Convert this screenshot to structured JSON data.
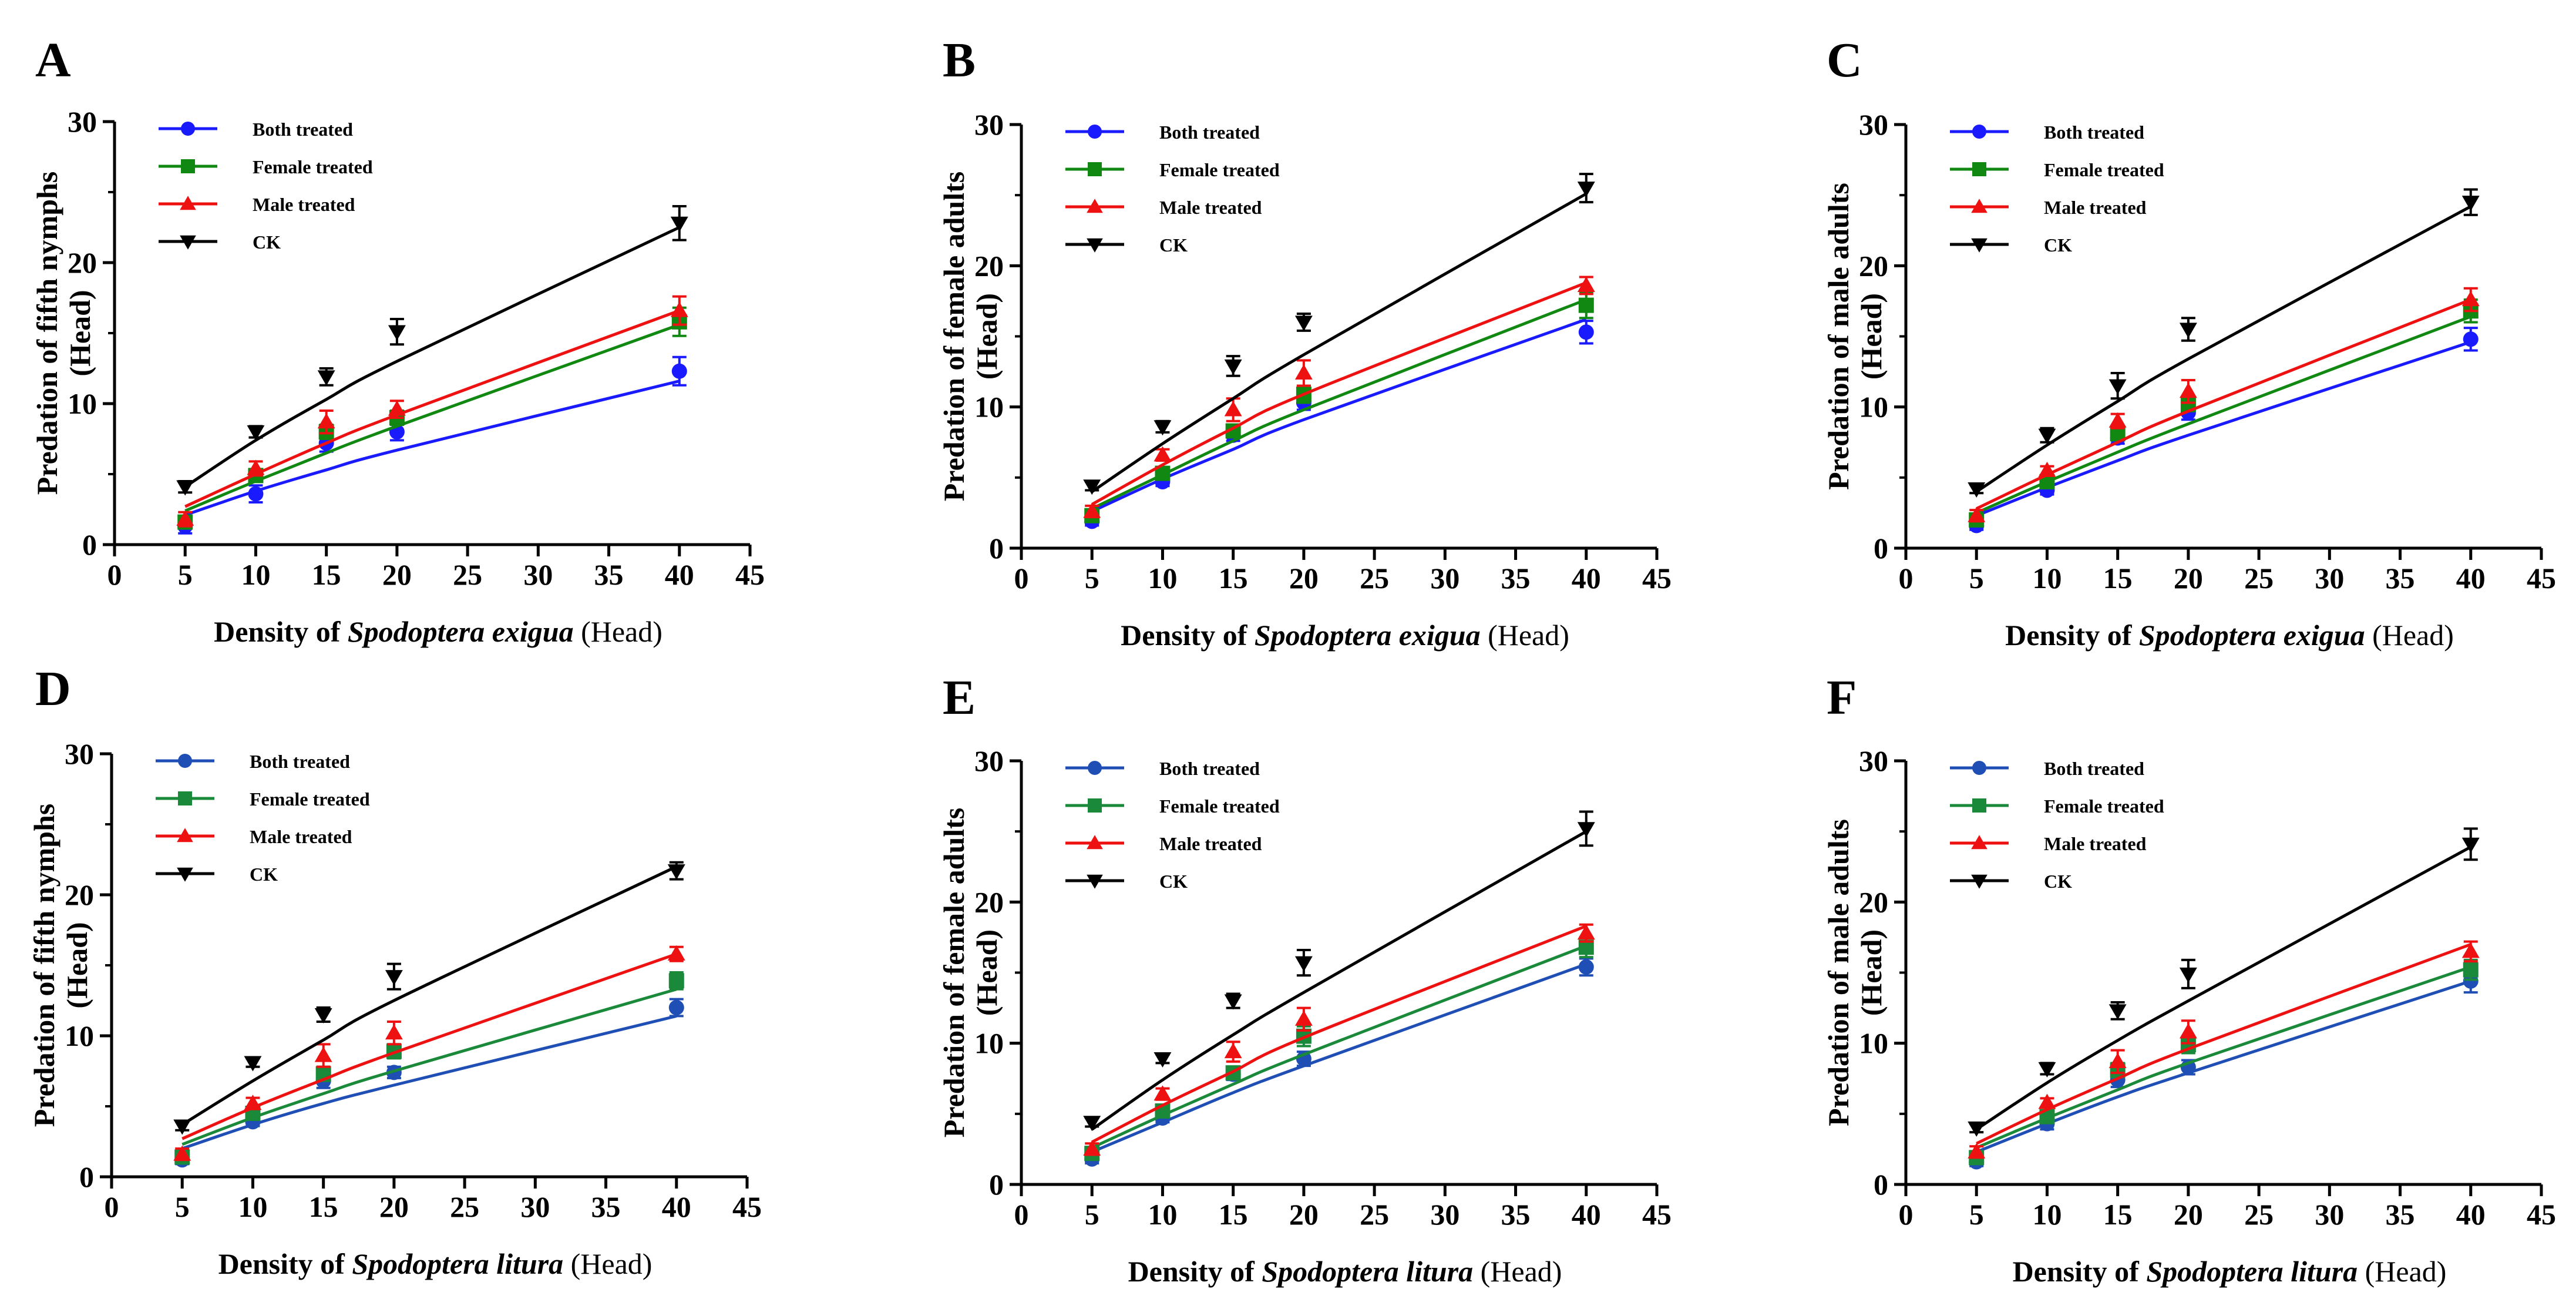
{
  "figure": {
    "colors": {
      "axis": "#000000",
      "series": [
        "#1a1aff",
        "#118811",
        "#ee1111",
        "#000000"
      ],
      "series_lower_row": [
        "#1f4fb5",
        "#1a8a3a",
        "#ee1111",
        "#000000"
      ]
    },
    "marker_shapes": [
      "circle",
      "square",
      "triangle-up",
      "triangle-down"
    ]
  },
  "chart_data": [
    {
      "panel_label": "A",
      "type": "scatter",
      "xlabel_prefix": "Density of ",
      "xlabel_species": "Spodoptera exigua",
      "xlabel_suffix": " (Head)",
      "ylabel_line1": "Predation of fifth nymphs",
      "ylabel_line2": "(Head)",
      "xlim": [
        0,
        45
      ],
      "ylim": [
        0,
        30
      ],
      "xticks": [
        0,
        5,
        10,
        15,
        20,
        25,
        30,
        35,
        40,
        45
      ],
      "yticks": [
        0,
        10,
        20,
        30
      ],
      "legend_position": "top-left",
      "x": [
        5,
        10,
        15,
        20,
        40
      ],
      "series": [
        {
          "name": "Both treated",
          "values": [
            1.3,
            3.6,
            7.2,
            8.0,
            12.3
          ],
          "errors": [
            0.5,
            0.6,
            0.6,
            0.6,
            1.0
          ],
          "fit": [
            2.1,
            3.8,
            5.3,
            6.7,
            11.6
          ]
        },
        {
          "name": "Female treated",
          "values": [
            1.6,
            4.9,
            8.0,
            9.0,
            15.8
          ],
          "errors": [
            0.4,
            0.4,
            0.5,
            0.5,
            1.0
          ],
          "fit": [
            2.4,
            4.5,
            6.5,
            8.4,
            15.6
          ]
        },
        {
          "name": "Male treated",
          "values": [
            1.8,
            5.4,
            8.7,
            9.6,
            16.6
          ],
          "errors": [
            0.5,
            0.5,
            0.8,
            0.6,
            1.0
          ],
          "fit": [
            2.7,
            5.0,
            7.2,
            9.2,
            16.6
          ]
        },
        {
          "name": "CK",
          "values": [
            4.1,
            8.0,
            11.9,
            15.1,
            22.8
          ],
          "errors": [
            0.4,
            0.4,
            0.6,
            0.9,
            1.2
          ],
          "fit": [
            4.1,
            7.4,
            10.3,
            13.0,
            22.5
          ]
        }
      ]
    },
    {
      "panel_label": "B",
      "type": "scatter",
      "xlabel_prefix": "Density of ",
      "xlabel_species": "Spodoptera exigua",
      "xlabel_suffix": " (Head)",
      "ylabel_line1": "Predation of female adults",
      "ylabel_line2": "(Head)",
      "xlim": [
        0,
        45
      ],
      "ylim": [
        0,
        30
      ],
      "xticks": [
        0,
        5,
        10,
        15,
        20,
        25,
        30,
        35,
        40,
        45
      ],
      "yticks": [
        0,
        10,
        20,
        30
      ],
      "legend_position": "top-left",
      "x": [
        5,
        10,
        15,
        20,
        40
      ],
      "series": [
        {
          "name": "Both treated",
          "values": [
            1.9,
            4.7,
            8.0,
            10.3,
            15.3
          ],
          "errors": [
            0.3,
            0.3,
            0.4,
            0.5,
            0.8
          ],
          "fit": [
            2.6,
            4.9,
            7.0,
            9.1,
            16.2
          ]
        },
        {
          "name": "Female treated",
          "values": [
            2.3,
            5.3,
            8.3,
            10.9,
            17.2
          ],
          "errors": [
            0.4,
            0.3,
            0.4,
            0.6,
            0.9
          ],
          "fit": [
            2.8,
            5.2,
            7.6,
            9.8,
            17.6
          ]
        },
        {
          "name": "Male treated",
          "values": [
            2.6,
            6.6,
            9.8,
            12.4,
            18.6
          ],
          "errors": [
            0.4,
            0.4,
            0.8,
            0.9,
            0.6
          ],
          "fit": [
            3.1,
            5.9,
            8.5,
            10.9,
            18.8
          ]
        },
        {
          "name": "CK",
          "values": [
            4.4,
            8.6,
            12.9,
            16.0,
            25.5
          ],
          "errors": [
            0.3,
            0.4,
            0.7,
            0.6,
            1.0
          ],
          "fit": [
            4.0,
            7.4,
            10.6,
            13.7,
            25.1
          ]
        }
      ]
    },
    {
      "panel_label": "C",
      "type": "scatter",
      "xlabel_prefix": "Density of ",
      "xlabel_species": "Spodoptera exigua",
      "xlabel_suffix": " (Head)",
      "ylabel_line1": "Predation of male adults",
      "ylabel_line2": "(Head)",
      "xlim": [
        0,
        45
      ],
      "ylim": [
        0,
        30
      ],
      "xticks": [
        0,
        5,
        10,
        15,
        20,
        25,
        30,
        35,
        40,
        45
      ],
      "yticks": [
        0,
        10,
        20,
        30
      ],
      "legend_position": "top-left",
      "x": [
        5,
        10,
        15,
        20,
        40
      ],
      "series": [
        {
          "name": "Both treated",
          "values": [
            1.6,
            4.1,
            7.8,
            9.6,
            14.8
          ],
          "errors": [
            0.3,
            0.3,
            0.4,
            0.5,
            0.8
          ],
          "fit": [
            2.3,
            4.3,
            6.2,
            8.0,
            14.6
          ]
        },
        {
          "name": "Female treated",
          "values": [
            2.0,
            4.7,
            8.1,
            10.2,
            16.8
          ],
          "errors": [
            0.3,
            0.3,
            0.4,
            0.5,
            0.8
          ],
          "fit": [
            2.5,
            4.7,
            6.8,
            8.8,
            16.4
          ]
        },
        {
          "name": "Male treated",
          "values": [
            2.3,
            5.5,
            9.0,
            11.1,
            17.6
          ],
          "errors": [
            0.4,
            0.3,
            0.5,
            0.8,
            0.8
          ],
          "fit": [
            2.8,
            5.2,
            7.5,
            9.7,
            17.6
          ]
        },
        {
          "name": "CK",
          "values": [
            4.2,
            8.0,
            11.5,
            15.5,
            24.5
          ],
          "errors": [
            0.3,
            0.5,
            0.9,
            0.8,
            0.9
          ],
          "fit": [
            4.0,
            7.3,
            10.4,
            13.4,
            24.2
          ]
        }
      ]
    },
    {
      "panel_label": "D",
      "type": "scatter",
      "xlabel_prefix": "Density of ",
      "xlabel_species": "Spodoptera litura",
      "xlabel_suffix": " (Head)",
      "ylabel_line1": "Predation of fifth nymphs",
      "ylabel_line2": "(Head)",
      "xlim": [
        0,
        45
      ],
      "ylim": [
        0,
        30
      ],
      "xticks": [
        0,
        5,
        10,
        15,
        20,
        25,
        30,
        35,
        40,
        45
      ],
      "yticks": [
        0,
        10,
        20,
        30
      ],
      "legend_position": "top-left",
      "x": [
        5,
        10,
        15,
        20,
        40
      ],
      "series": [
        {
          "name": "Both treated",
          "values": [
            1.2,
            3.9,
            6.8,
            7.4,
            12.0
          ],
          "errors": [
            0.3,
            0.3,
            0.5,
            0.4,
            0.6
          ],
          "fit": [
            2.0,
            3.7,
            5.2,
            6.5,
            11.4
          ]
        },
        {
          "name": "Female treated",
          "values": [
            1.4,
            4.5,
            7.3,
            8.9,
            13.9
          ],
          "errors": [
            0.3,
            0.4,
            0.5,
            0.5,
            0.6
          ],
          "fit": [
            2.3,
            4.2,
            5.9,
            7.5,
            13.3
          ]
        },
        {
          "name": "Male treated",
          "values": [
            1.6,
            5.2,
            8.6,
            10.2,
            15.8
          ],
          "errors": [
            0.4,
            0.4,
            0.8,
            0.8,
            0.5
          ],
          "fit": [
            2.7,
            4.9,
            6.9,
            8.8,
            15.8
          ]
        },
        {
          "name": "CK",
          "values": [
            3.6,
            8.1,
            11.5,
            14.2,
            21.7
          ],
          "errors": [
            0.3,
            0.3,
            0.5,
            0.9,
            0.6
          ],
          "fit": [
            3.7,
            6.8,
            9.7,
            12.5,
            22.0
          ]
        }
      ]
    },
    {
      "panel_label": "E",
      "type": "scatter",
      "xlabel_prefix": "Density of ",
      "xlabel_species": "Spodoptera litura",
      "xlabel_suffix": " (Head)",
      "ylabel_line1": "Predation of female adults",
      "ylabel_line2": "(Head)",
      "xlim": [
        0,
        45
      ],
      "ylim": [
        0,
        30
      ],
      "xticks": [
        0,
        5,
        10,
        15,
        20,
        25,
        30,
        35,
        40,
        45
      ],
      "yticks": [
        0,
        10,
        20,
        30
      ],
      "legend_position": "top-left",
      "x": [
        5,
        10,
        15,
        20,
        40
      ],
      "series": [
        {
          "name": "Both treated",
          "values": [
            1.8,
            4.7,
            7.8,
            8.9,
            15.4
          ],
          "errors": [
            0.3,
            0.3,
            0.4,
            0.5,
            0.6
          ],
          "fit": [
            2.3,
            4.4,
            6.5,
            8.4,
            15.6
          ]
        },
        {
          "name": "Female treated",
          "values": [
            2.2,
            5.2,
            7.9,
            10.5,
            16.8
          ],
          "errors": [
            0.4,
            0.3,
            0.4,
            0.7,
            0.7
          ],
          "fit": [
            2.6,
            4.9,
            7.1,
            9.2,
            16.9
          ]
        },
        {
          "name": "Male treated",
          "values": [
            2.5,
            6.4,
            9.4,
            11.7,
            17.8
          ],
          "errors": [
            0.4,
            0.4,
            0.7,
            0.8,
            0.6
          ],
          "fit": [
            3.0,
            5.6,
            8.0,
            10.4,
            18.3
          ]
        },
        {
          "name": "CK",
          "values": [
            4.4,
            8.9,
            13.0,
            15.7,
            25.2
          ],
          "errors": [
            0.3,
            0.3,
            0.5,
            0.9,
            1.2
          ],
          "fit": [
            3.9,
            7.4,
            10.6,
            13.6,
            25.0
          ]
        }
      ]
    },
    {
      "panel_label": "F",
      "type": "scatter",
      "xlabel_prefix": "Density of ",
      "xlabel_species": "Spodoptera litura",
      "xlabel_suffix": " (Head)",
      "ylabel_line1": "Predation of male adults",
      "ylabel_line2": "(Head)",
      "xlim": [
        0,
        45
      ],
      "ylim": [
        0,
        30
      ],
      "xticks": [
        0,
        5,
        10,
        15,
        20,
        25,
        30,
        35,
        40,
        45
      ],
      "yticks": [
        0,
        10,
        20,
        30
      ],
      "legend_position": "top-left",
      "x": [
        5,
        10,
        15,
        20,
        40
      ],
      "series": [
        {
          "name": "Both treated",
          "values": [
            1.6,
            4.3,
            7.4,
            8.3,
            14.4
          ],
          "errors": [
            0.3,
            0.4,
            0.5,
            0.5,
            0.8
          ],
          "fit": [
            2.3,
            4.3,
            6.2,
            7.9,
            14.4
          ]
        },
        {
          "name": "Female treated",
          "values": [
            1.9,
            4.8,
            8.1,
            9.9,
            15.2
          ],
          "errors": [
            0.3,
            0.4,
            0.5,
            0.6,
            0.7
          ],
          "fit": [
            2.6,
            4.7,
            6.7,
            8.6,
            15.4
          ]
        },
        {
          "name": "Male treated",
          "values": [
            2.3,
            5.8,
            8.7,
            10.8,
            16.5
          ],
          "errors": [
            0.4,
            0.3,
            0.8,
            0.8,
            0.7
          ],
          "fit": [
            2.9,
            5.3,
            7.5,
            9.6,
            17.0
          ]
        },
        {
          "name": "CK",
          "values": [
            4.0,
            8.2,
            12.3,
            14.9,
            24.1
          ],
          "errors": [
            0.3,
            0.4,
            0.6,
            1.0,
            1.1
          ],
          "fit": [
            3.9,
            7.2,
            10.2,
            13.0,
            23.9
          ]
        }
      ]
    }
  ]
}
